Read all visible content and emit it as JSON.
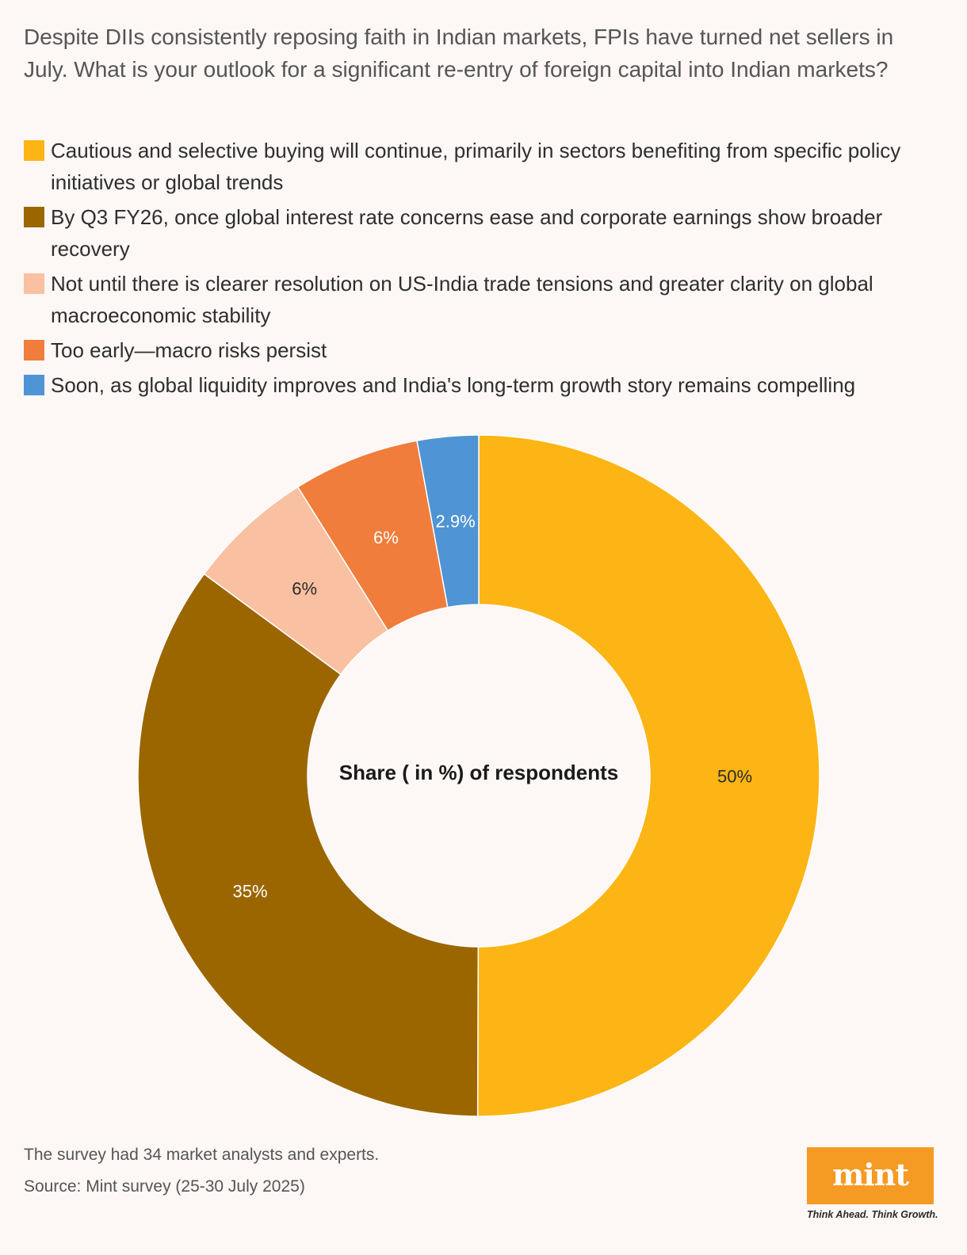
{
  "chart_data": {
    "type": "pie",
    "title": "Despite DIIs consistently reposing faith in Indian markets, FPIs have turned net sellers in July. What is your outlook for a significant re-entry of foreign capital into Indian markets?",
    "center_label": "Share ( in %) of respondents",
    "slices": [
      {
        "label": "Cautious and selective buying will continue, primarily in sectors benefiting from specific policy initiatives or global trends",
        "value": 50,
        "value_label": "50%",
        "color": "#fdb515",
        "label_color": "#2b2b2b"
      },
      {
        "label": "By Q3 FY26, once global interest rate concerns ease and corporate earnings show broader recovery",
        "value": 35,
        "value_label": "35%",
        "color": "#9b6600",
        "label_color": "#ffffff"
      },
      {
        "label": "Not until there is clearer resolution on US-India trade tensions and greater clarity on global macroeconomic stability",
        "value": 6,
        "value_label": "6%",
        "color": "#f9c0a1",
        "label_color": "#2b2b2b"
      },
      {
        "label": "Too early—macro risks persist",
        "value": 6,
        "value_label": "6%",
        "color": "#f07d3c",
        "label_color": "#ffffff"
      },
      {
        "label": "Soon, as global liquidity improves and India's long-term growth story remains compelling",
        "value": 2.9,
        "value_label": "2.9%",
        "color": "#4f94d4",
        "label_color": "#ffffff"
      }
    ],
    "legend_position": "top"
  },
  "footnote": "The survey had 34 market analysts and experts.",
  "source": "Source: Mint survey (25-30 July 2025)",
  "logo": {
    "text": "mint",
    "tagline": "Think Ahead. Think Growth."
  }
}
